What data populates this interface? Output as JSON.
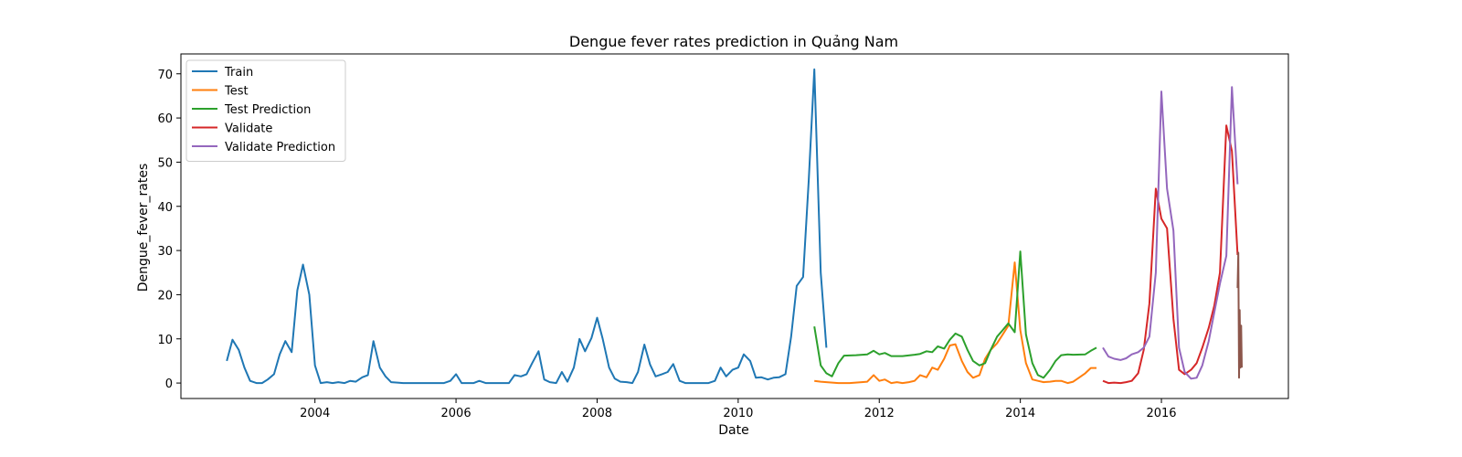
{
  "chart_data": {
    "type": "line",
    "title": "Dengue fever rates prediction in Quảng Nam",
    "xlabel": "Date",
    "ylabel": "Dengue_fever_rates",
    "xlim": [
      2002.1,
      2017.8
    ],
    "ylim": [
      -3.5,
      74.5
    ],
    "x_ticks": [
      2004,
      2006,
      2008,
      2010,
      2012,
      2014,
      2016
    ],
    "y_ticks": [
      0,
      10,
      20,
      30,
      40,
      50,
      60,
      70
    ],
    "grid": false,
    "legend_position": "upper-left",
    "series": [
      {
        "name": "Train",
        "color": "#1f77b4",
        "points": [
          [
            2002.75,
            5
          ],
          [
            2002.83,
            9.8
          ],
          [
            2002.92,
            7.5
          ],
          [
            2003.0,
            3.5
          ],
          [
            2003.08,
            0.5
          ],
          [
            2003.17,
            0
          ],
          [
            2003.25,
            0
          ],
          [
            2003.33,
            0.8
          ],
          [
            2003.42,
            2
          ],
          [
            2003.5,
            6.5
          ],
          [
            2003.58,
            9.5
          ],
          [
            2003.67,
            7
          ],
          [
            2003.75,
            21
          ],
          [
            2003.83,
            26.8
          ],
          [
            2003.92,
            20
          ],
          [
            2004.0,
            4
          ],
          [
            2004.08,
            0
          ],
          [
            2004.17,
            0.2
          ],
          [
            2004.25,
            0
          ],
          [
            2004.33,
            0.2
          ],
          [
            2004.42,
            0
          ],
          [
            2004.5,
            0.5
          ],
          [
            2004.58,
            0.3
          ],
          [
            2004.67,
            1.3
          ],
          [
            2004.75,
            1.8
          ],
          [
            2004.83,
            9.5
          ],
          [
            2004.92,
            3.5
          ],
          [
            2005.0,
            1.5
          ],
          [
            2005.08,
            0.2
          ],
          [
            2005.17,
            0.1
          ],
          [
            2005.25,
            0
          ],
          [
            2005.5,
            0
          ],
          [
            2005.75,
            0
          ],
          [
            2005.83,
            0
          ],
          [
            2005.92,
            0.5
          ],
          [
            2006.0,
            2
          ],
          [
            2006.08,
            0
          ],
          [
            2006.17,
            0
          ],
          [
            2006.25,
            0
          ],
          [
            2006.33,
            0.5
          ],
          [
            2006.42,
            0
          ],
          [
            2006.5,
            0
          ],
          [
            2006.58,
            0
          ],
          [
            2006.67,
            0
          ],
          [
            2006.75,
            0
          ],
          [
            2006.83,
            1.8
          ],
          [
            2006.92,
            1.5
          ],
          [
            2007.0,
            2
          ],
          [
            2007.08,
            4.5
          ],
          [
            2007.17,
            7.2
          ],
          [
            2007.25,
            0.8
          ],
          [
            2007.33,
            0.2
          ],
          [
            2007.42,
            0
          ],
          [
            2007.5,
            2.5
          ],
          [
            2007.58,
            0.3
          ],
          [
            2007.67,
            3.5
          ],
          [
            2007.75,
            10
          ],
          [
            2007.83,
            7.2
          ],
          [
            2007.92,
            10.2
          ],
          [
            2008.0,
            14.8
          ],
          [
            2008.08,
            10
          ],
          [
            2008.17,
            3.5
          ],
          [
            2008.25,
            1
          ],
          [
            2008.33,
            0.3
          ],
          [
            2008.42,
            0.2
          ],
          [
            2008.5,
            0
          ],
          [
            2008.58,
            2.5
          ],
          [
            2008.67,
            8.7
          ],
          [
            2008.75,
            4.2
          ],
          [
            2008.83,
            1.5
          ],
          [
            2008.92,
            2
          ],
          [
            2009.0,
            2.5
          ],
          [
            2009.08,
            4.3
          ],
          [
            2009.17,
            0.5
          ],
          [
            2009.25,
            0
          ],
          [
            2009.33,
            0
          ],
          [
            2009.42,
            0
          ],
          [
            2009.5,
            0
          ],
          [
            2009.58,
            0
          ],
          [
            2009.67,
            0.5
          ],
          [
            2009.75,
            3.5
          ],
          [
            2009.83,
            1.5
          ],
          [
            2009.92,
            3
          ],
          [
            2010.0,
            3.5
          ],
          [
            2010.08,
            6.5
          ],
          [
            2010.17,
            5
          ],
          [
            2010.25,
            1.2
          ],
          [
            2010.33,
            1.3
          ],
          [
            2010.42,
            0.8
          ],
          [
            2010.5,
            1.2
          ],
          [
            2010.58,
            1.3
          ],
          [
            2010.67,
            2
          ],
          [
            2010.75,
            10.5
          ],
          [
            2010.83,
            22
          ],
          [
            2010.92,
            24
          ],
          [
            2011.0,
            46
          ],
          [
            2011.08,
            71
          ],
          [
            2011.17,
            25
          ],
          [
            2011.25,
            8
          ]
        ]
      },
      {
        "name": "Test",
        "color": "#ff7f0e",
        "points": [
          [
            2011.08,
            0.5
          ],
          [
            2011.17,
            0.3
          ],
          [
            2011.25,
            0.2
          ],
          [
            2011.42,
            0
          ],
          [
            2011.58,
            0
          ],
          [
            2011.75,
            0.2
          ],
          [
            2011.83,
            0.3
          ],
          [
            2011.92,
            1.8
          ],
          [
            2012.0,
            0.5
          ],
          [
            2012.08,
            0.8
          ],
          [
            2012.17,
            0
          ],
          [
            2012.25,
            0.2
          ],
          [
            2012.33,
            0
          ],
          [
            2012.42,
            0.2
          ],
          [
            2012.5,
            0.5
          ],
          [
            2012.58,
            1.8
          ],
          [
            2012.67,
            1.3
          ],
          [
            2012.75,
            3.5
          ],
          [
            2012.83,
            3
          ],
          [
            2012.92,
            5.5
          ],
          [
            2013.0,
            8.5
          ],
          [
            2013.08,
            8.8
          ],
          [
            2013.17,
            5
          ],
          [
            2013.25,
            2.5
          ],
          [
            2013.33,
            1.2
          ],
          [
            2013.42,
            1.8
          ],
          [
            2013.5,
            5.5
          ],
          [
            2013.58,
            7.5
          ],
          [
            2013.67,
            9
          ],
          [
            2013.75,
            11
          ],
          [
            2013.83,
            13
          ],
          [
            2013.92,
            27.3
          ],
          [
            2014.0,
            12
          ],
          [
            2014.08,
            4.5
          ],
          [
            2014.17,
            0.8
          ],
          [
            2014.25,
            0.5
          ],
          [
            2014.33,
            0.2
          ],
          [
            2014.42,
            0.3
          ],
          [
            2014.5,
            0.5
          ],
          [
            2014.58,
            0.5
          ],
          [
            2014.67,
            0
          ],
          [
            2014.75,
            0.3
          ],
          [
            2014.83,
            1.2
          ],
          [
            2014.92,
            2.2
          ],
          [
            2015.0,
            3.4
          ],
          [
            2015.08,
            3.4
          ]
        ]
      },
      {
        "name": "Test Prediction",
        "color": "#2ca02c",
        "points": [
          [
            2011.08,
            12.8
          ],
          [
            2011.17,
            4
          ],
          [
            2011.25,
            2.2
          ],
          [
            2011.33,
            1.5
          ],
          [
            2011.42,
            4.5
          ],
          [
            2011.5,
            6.2
          ],
          [
            2011.67,
            6.3
          ],
          [
            2011.83,
            6.5
          ],
          [
            2011.92,
            7.3
          ],
          [
            2012.0,
            6.5
          ],
          [
            2012.08,
            6.8
          ],
          [
            2012.17,
            6.1
          ],
          [
            2012.33,
            6.1
          ],
          [
            2012.5,
            6.4
          ],
          [
            2012.58,
            6.6
          ],
          [
            2012.67,
            7.2
          ],
          [
            2012.75,
            7
          ],
          [
            2012.83,
            8.3
          ],
          [
            2012.92,
            7.8
          ],
          [
            2013.0,
            9.8
          ],
          [
            2013.08,
            11.2
          ],
          [
            2013.17,
            10.5
          ],
          [
            2013.25,
            7.5
          ],
          [
            2013.33,
            5
          ],
          [
            2013.42,
            4
          ],
          [
            2013.5,
            4.5
          ],
          [
            2013.58,
            7.5
          ],
          [
            2013.67,
            10.5
          ],
          [
            2013.75,
            12
          ],
          [
            2013.83,
            13.5
          ],
          [
            2013.92,
            11.5
          ],
          [
            2014.0,
            29.8
          ],
          [
            2014.08,
            11
          ],
          [
            2014.17,
            4.5
          ],
          [
            2014.25,
            1.8
          ],
          [
            2014.33,
            1.2
          ],
          [
            2014.42,
            3
          ],
          [
            2014.5,
            5
          ],
          [
            2014.58,
            6.3
          ],
          [
            2014.67,
            6.5
          ],
          [
            2014.75,
            6.4
          ],
          [
            2014.92,
            6.5
          ],
          [
            2015.0,
            7.3
          ],
          [
            2015.08,
            8
          ]
        ]
      },
      {
        "name": "Validate",
        "color": "#d62728",
        "points": [
          [
            2015.17,
            0.5
          ],
          [
            2015.25,
            0
          ],
          [
            2015.33,
            0.1
          ],
          [
            2015.42,
            0
          ],
          [
            2015.5,
            0.2
          ],
          [
            2015.58,
            0.5
          ],
          [
            2015.67,
            2.2
          ],
          [
            2015.75,
            7.5
          ],
          [
            2015.83,
            18
          ],
          [
            2015.92,
            44
          ],
          [
            2016.0,
            37.2
          ],
          [
            2016.08,
            35
          ],
          [
            2016.17,
            14.5
          ],
          [
            2016.25,
            3
          ],
          [
            2016.33,
            2
          ],
          [
            2016.42,
            3
          ],
          [
            2016.5,
            4.5
          ],
          [
            2016.58,
            8
          ],
          [
            2016.67,
            12.5
          ],
          [
            2016.75,
            17.5
          ],
          [
            2016.83,
            25
          ],
          [
            2016.92,
            58.3
          ],
          [
            2017.0,
            52.5
          ],
          [
            2017.08,
            29
          ]
        ]
      },
      {
        "name": "Validate Prediction",
        "color": "#9467bd",
        "points": [
          [
            2015.17,
            8
          ],
          [
            2015.25,
            6
          ],
          [
            2015.33,
            5.5
          ],
          [
            2015.42,
            5.2
          ],
          [
            2015.5,
            5.6
          ],
          [
            2015.58,
            6.5
          ],
          [
            2015.67,
            7
          ],
          [
            2015.75,
            8
          ],
          [
            2015.83,
            10.5
          ],
          [
            2015.92,
            25
          ],
          [
            2016.0,
            66
          ],
          [
            2016.08,
            44
          ],
          [
            2016.17,
            34.5
          ],
          [
            2016.25,
            8
          ],
          [
            2016.33,
            2.5
          ],
          [
            2016.42,
            1
          ],
          [
            2016.5,
            1.2
          ],
          [
            2016.58,
            4
          ],
          [
            2016.67,
            9.5
          ],
          [
            2016.75,
            16
          ],
          [
            2016.83,
            22.5
          ],
          [
            2016.92,
            28.8
          ],
          [
            2017.0,
            67
          ],
          [
            2017.08,
            45
          ]
        ]
      },
      {
        "name": "",
        "color": "#8c564b",
        "legend": false,
        "points": [
          [
            2017.08,
            21.5
          ],
          [
            2017.09,
            29.5
          ],
          [
            2017.1,
            1.2
          ],
          [
            2017.11,
            16.5
          ],
          [
            2017.12,
            3.5
          ],
          [
            2017.13,
            13
          ],
          [
            2017.14,
            3.5
          ]
        ]
      }
    ]
  }
}
